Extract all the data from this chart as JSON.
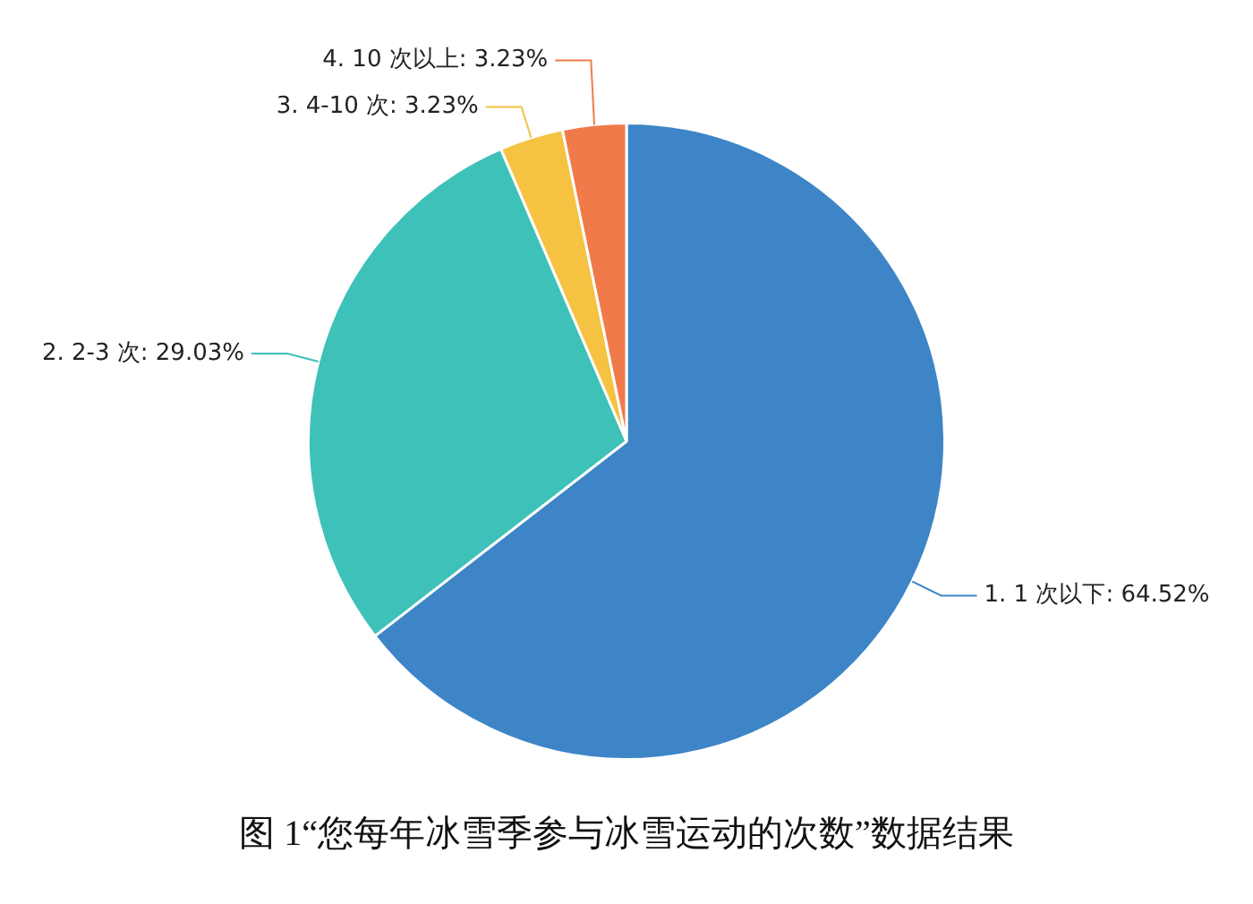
{
  "chart_data": {
    "type": "pie",
    "annotations": [
      "图 1“您每年冰雪季参与冰雪运动的次数”数据结果"
    ],
    "categories": [
      "1. 1 次以下",
      "2. 2-3 次",
      "3. 4-10 次",
      "4. 10 次以上"
    ],
    "values": [
      64.52,
      29.03,
      3.23,
      3.23
    ],
    "value_labels": [
      "64.52%",
      "29.03%",
      "3.23%",
      "3.23%"
    ],
    "colors": [
      "#3d85c6",
      "#3ec1b9",
      "#f5c242",
      "#f07a4a"
    ],
    "legend": false
  }
}
